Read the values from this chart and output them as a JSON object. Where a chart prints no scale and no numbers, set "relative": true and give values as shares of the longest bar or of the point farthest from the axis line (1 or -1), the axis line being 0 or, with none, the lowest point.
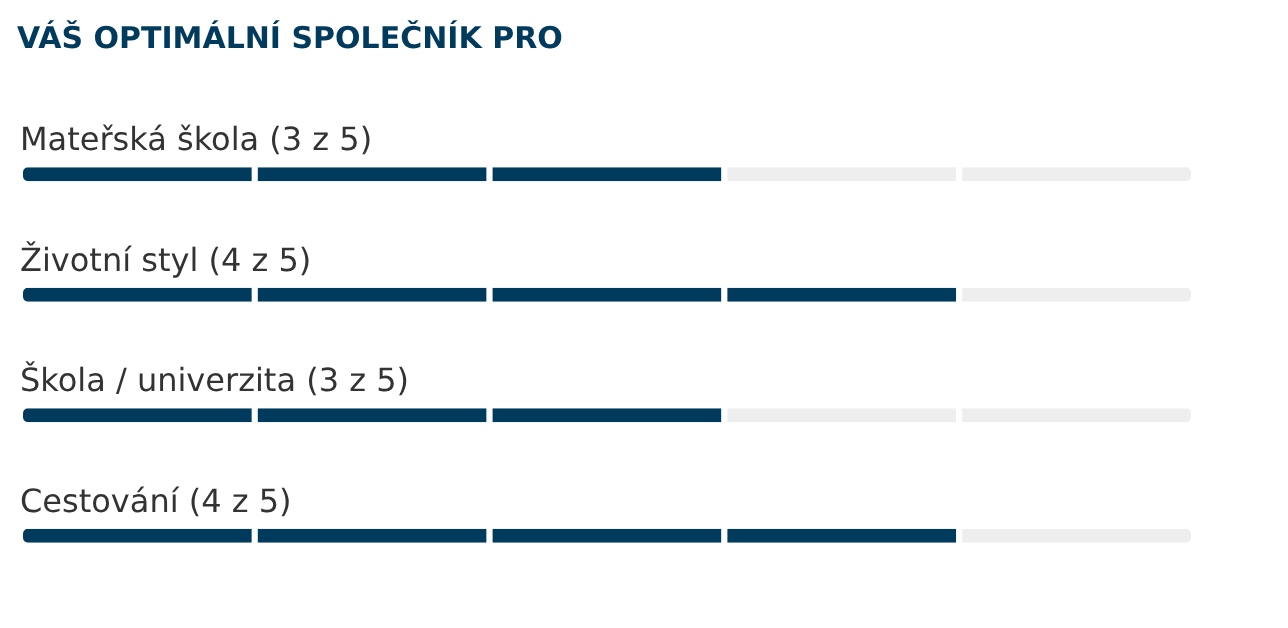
{
  "chart_data": {
    "type": "bar",
    "orientation": "horizontal",
    "stacked": true,
    "relative": true,
    "title": "VÁŠ OPTIMÁLNÍ SPOLEČNÍK PRO",
    "categories": [
      "Mateřská škola (3 z 5)",
      "Životní styl (4 z 5)",
      "Škola / univerzita (3 z 5)",
      "Cestování (4 z 5)"
    ],
    "series": [
      {
        "values": [
          0.2,
          0.2,
          0.2,
          0.2
        ],
        "colors": [
          "#003a5d",
          "#003a5d",
          "#003a5d",
          "#003a5d"
        ]
      },
      {
        "values": [
          0.2,
          0.2,
          0.2,
          0.2
        ],
        "colors": [
          "#003a5d",
          "#003a5d",
          "#003a5d",
          "#003a5d"
        ]
      },
      {
        "values": [
          0.2,
          0.2,
          0.2,
          0.2
        ],
        "colors": [
          "#003a5d",
          "#003a5d",
          "#003a5d",
          "#003a5d"
        ]
      },
      {
        "values": [
          0.2,
          0.2,
          0.2,
          0.2
        ],
        "colors": [
          "#eeeeee",
          "#003a5d",
          "#eeeeee",
          "#003a5d"
        ]
      },
      {
        "values": [
          0.2,
          0.2,
          0.2,
          0.2
        ],
        "colors": [
          "#eeeeee",
          "#eeeeee",
          "#eeeeee",
          "#eeeeee"
        ]
      }
    ]
  }
}
